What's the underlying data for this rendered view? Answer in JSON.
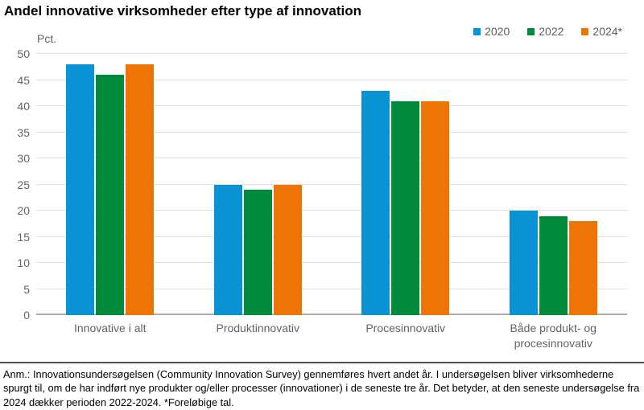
{
  "title": "Andel innovative virksomheder efter type af innovation",
  "footnote": "Anm.: Innovationsundersøgelsen (Community Innovation Survey) gennemføres hvert andet år. I undersøgelsen bliver virksomhederne spurgt til, om de har indført nye produkter og/eller processer (innovationer) i de seneste tre år. Det betyder, at den seneste undersøgelse fra 2024 dækker perioden 2022-2024. *Foreløbige tal.",
  "chart_data": {
    "type": "bar",
    "categories": [
      "Innovative i alt",
      "Produktinnovativ",
      "Procesinnovativ",
      "Både produkt- og procesinnovativ"
    ],
    "series": [
      {
        "name": "2020",
        "color": "#0a93d4",
        "values": [
          48,
          25,
          43,
          20
        ]
      },
      {
        "name": "2022",
        "color": "#008b3c",
        "values": [
          46,
          24,
          41,
          19
        ]
      },
      {
        "name": "2024*",
        "color": "#ee7405",
        "values": [
          48,
          25,
          41,
          18
        ]
      }
    ],
    "ylabel": "Pct.",
    "ylim": [
      0,
      50
    ],
    "ytick_step": 5,
    "grid": true,
    "legend_position": "top-right",
    "colors": {
      "gridline": "#e3e3dc",
      "axis_line": "#aeaea5",
      "axis_text": "#64645b",
      "separator": "#44525c"
    }
  }
}
